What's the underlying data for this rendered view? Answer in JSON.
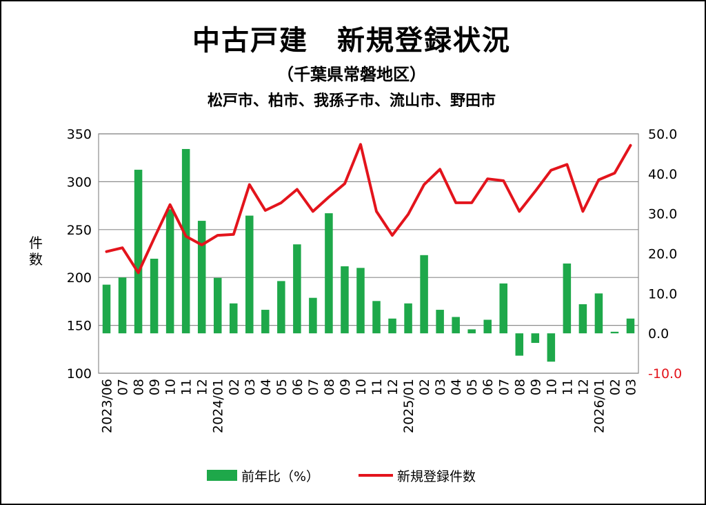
{
  "header": {
    "title": "中古戸建　新規登録状況",
    "subtitle": "（千葉県常磐地区）",
    "areas": "松戸市、柏市、我孫子市、流山市、野田市"
  },
  "colors": {
    "bar": "#1ea84a",
    "line": "#e3141c",
    "grid": "#8c8c8c",
    "negative_tick": "#e3141c"
  },
  "chart_data": {
    "type": "bar+line",
    "categories": [
      "2023/06",
      "07",
      "08",
      "09",
      "10",
      "11",
      "12",
      "2024/01",
      "02",
      "03",
      "04",
      "05",
      "06",
      "07",
      "08",
      "09",
      "10",
      "11",
      "12",
      "2025/01",
      "02",
      "03",
      "04",
      "05",
      "06",
      "07",
      "08",
      "09",
      "10",
      "11",
      "12",
      "2026/01",
      "02",
      "03"
    ],
    "y_left": {
      "label": "件数",
      "min": 100,
      "max": 350,
      "ticks": [
        "100",
        "150",
        "200",
        "250",
        "300",
        "350"
      ]
    },
    "y_right": {
      "min": -10,
      "max": 50,
      "ticks": [
        "-10.0",
        "0.0",
        "10.0",
        "20.0",
        "30.0",
        "40.0",
        "50.0"
      ]
    },
    "series": [
      {
        "name": "前年比（%）",
        "type": "bar",
        "axis": "right",
        "values": [
          12.2,
          14.0,
          41.0,
          18.7,
          31.1,
          46.2,
          28.2,
          13.9,
          7.5,
          29.5,
          5.9,
          13.1,
          22.3,
          8.9,
          30.1,
          16.8,
          16.4,
          8.1,
          3.7,
          7.5,
          19.6,
          5.9,
          4.1,
          1.0,
          3.4,
          12.5,
          -5.6,
          -2.4,
          -7.1,
          17.5,
          7.3,
          10.0,
          0.4,
          3.7
        ]
      },
      {
        "name": "新規登録件数",
        "type": "line",
        "axis": "left",
        "values": [
          227,
          231,
          205,
          241,
          276,
          243,
          234,
          244,
          245,
          297,
          270,
          278,
          292,
          269,
          284,
          298,
          339,
          269,
          244,
          266,
          297,
          313,
          278,
          278,
          303,
          301,
          269,
          290,
          312,
          318,
          269,
          302,
          309,
          338
        ]
      }
    ],
    "grid": true,
    "legend": "bottom"
  }
}
